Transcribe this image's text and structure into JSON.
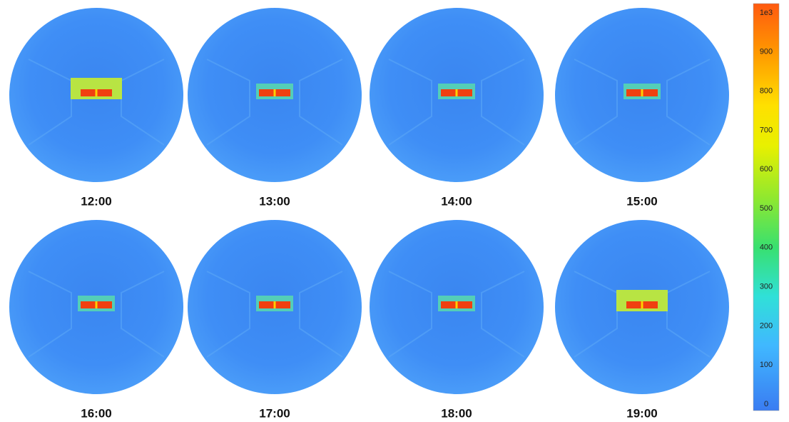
{
  "panels": [
    {
      "label": "12:00"
    },
    {
      "label": "13:00"
    },
    {
      "label": "14:00"
    },
    {
      "label": "15:00"
    },
    {
      "label": "16:00"
    },
    {
      "label": "17:00"
    },
    {
      "label": "18:00"
    },
    {
      "label": "19:00"
    }
  ],
  "colorbar": {
    "labels": [
      "1e3",
      "900",
      "800",
      "700",
      "600",
      "500",
      "400",
      "300",
      "200",
      "100",
      "0"
    ]
  }
}
